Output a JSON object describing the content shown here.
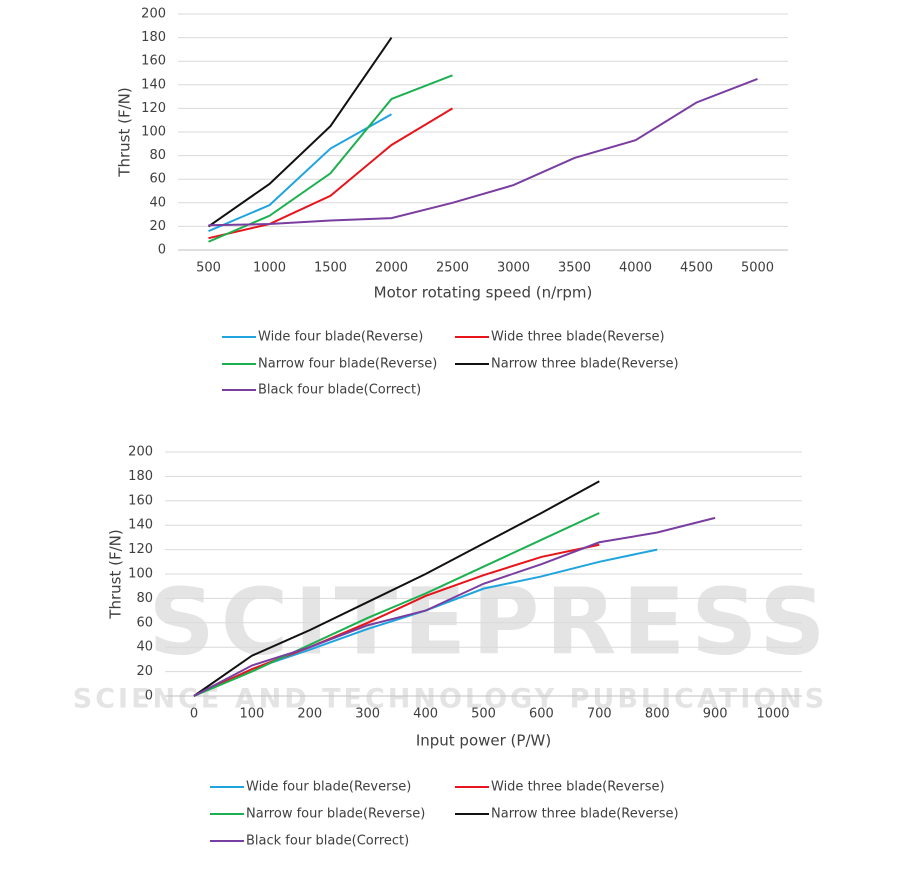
{
  "chart_data": [
    {
      "type": "line",
      "ylabel": "Thrust (F/N)",
      "xlabel": "Motor rotating speed (n/rpm)",
      "x": [
        500,
        1000,
        1500,
        2000,
        2500,
        3000,
        3500,
        4000,
        4500,
        5000
      ],
      "xlim": [
        250,
        5250
      ],
      "xticks": [
        500,
        1000,
        1500,
        2000,
        2500,
        3000,
        3500,
        4000,
        4500,
        5000
      ],
      "ylim": [
        0,
        200
      ],
      "yticks": [
        0,
        20,
        40,
        60,
        80,
        100,
        120,
        140,
        160,
        180,
        200
      ],
      "grid": true,
      "legend": "bottom",
      "series": [
        {
          "name": "Wide four blade(Reverse)",
          "color": "#1fa4e0",
          "values": [
            16,
            38,
            86,
            115,
            null,
            null,
            null,
            null,
            null,
            null
          ]
        },
        {
          "name": "Wide three blade(Reverse)",
          "color": "#e8141b",
          "values": [
            10,
            22,
            46,
            89,
            120,
            null,
            null,
            null,
            null,
            null
          ]
        },
        {
          "name": "Narrow four blade(Reverse)",
          "color": "#1cb050",
          "values": [
            7,
            29,
            65,
            128,
            148,
            null,
            null,
            null,
            null,
            null
          ]
        },
        {
          "name": "Narrow three blade(Reverse)",
          "color": "#111111",
          "values": [
            20,
            56,
            105,
            180,
            null,
            null,
            null,
            null,
            null,
            null
          ]
        },
        {
          "name": "Black four blade(Correct)",
          "color": "#7a3ea0",
          "values": [
            21,
            22,
            25,
            27,
            40,
            55,
            78,
            93,
            125,
            145
          ]
        }
      ]
    },
    {
      "type": "line",
      "ylabel": "Thrust (F/N)",
      "xlabel": "Input power (P/W)",
      "x": [
        0,
        100,
        200,
        300,
        400,
        500,
        600,
        700,
        800,
        900,
        1000
      ],
      "xlim": [
        -50,
        1050
      ],
      "xticks": [
        0,
        100,
        200,
        300,
        400,
        500,
        600,
        700,
        800,
        900,
        1000
      ],
      "ylim": [
        0,
        200
      ],
      "yticks": [
        0,
        20,
        40,
        60,
        80,
        100,
        120,
        140,
        160,
        180,
        200
      ],
      "grid": true,
      "legend": "bottom",
      "series": [
        {
          "name": "Wide four blade(Reverse)",
          "color": "#1fa4e0",
          "values": [
            0,
            22,
            38,
            55,
            70,
            88,
            98,
            110,
            120,
            null,
            null
          ]
        },
        {
          "name": "Wide three blade(Reverse)",
          "color": "#e8141b",
          "values": [
            0,
            22,
            40,
            60,
            82,
            99,
            114,
            124,
            null,
            null,
            null
          ]
        },
        {
          "name": "Narrow four blade(Reverse)",
          "color": "#1cb050",
          "values": [
            0,
            20,
            42,
            64,
            84,
            106,
            128,
            150,
            null,
            null,
            null
          ]
        },
        {
          "name": "Narrow three blade(Reverse)",
          "color": "#111111",
          "values": [
            0,
            33,
            54,
            77,
            100,
            125,
            150,
            176,
            null,
            null,
            null
          ]
        },
        {
          "name": "Black four blade(Correct)",
          "color": "#7a3ea0",
          "values": [
            0,
            25,
            40,
            58,
            70,
            92,
            108,
            126,
            134,
            146,
            null
          ]
        }
      ]
    }
  ],
  "watermark": {
    "logo": "SCITEPRESS",
    "tagline": "SCIENCE AND TECHNOLOGY PUBLICATIONS"
  }
}
